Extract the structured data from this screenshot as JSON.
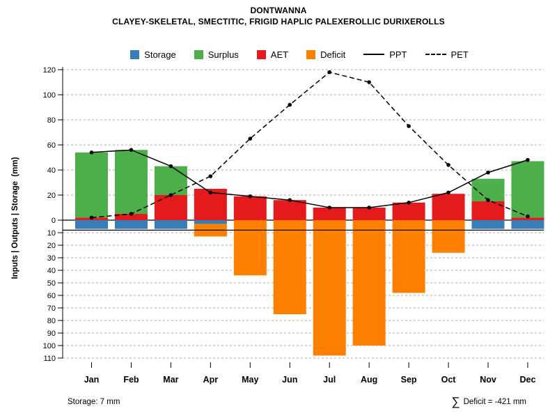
{
  "chart_data": {
    "type": "bar",
    "title": "DONTWANNA",
    "subtitle": "CLAYEY-SKELETAL, SMECTITIC, FRIGID HAPLIC PALEXEROLLIC DURIXEROLLS",
    "ylabel": "Inputs | Outputs | Storage  (mm)",
    "categories": [
      "Jan",
      "Feb",
      "Mar",
      "Apr",
      "May",
      "Jun",
      "Jul",
      "Aug",
      "Sep",
      "Oct",
      "Nov",
      "Dec"
    ],
    "y_axis": {
      "upper_ticks": [
        0,
        20,
        40,
        60,
        80,
        100,
        120
      ],
      "lower_ticks": [
        10,
        20,
        30,
        40,
        50,
        60,
        70,
        80,
        90,
        100,
        110
      ],
      "lower_ticks_are_below_zero": true,
      "ylim": [
        -115,
        122
      ]
    },
    "grid": true,
    "legend_position": "top",
    "series": [
      {
        "name": "Storage",
        "kind": "bar_below_zero",
        "color": "#377EB8",
        "values": [
          7,
          7,
          7,
          3,
          0,
          0,
          0,
          0,
          0,
          0,
          7,
          7
        ]
      },
      {
        "name": "Surplus",
        "kind": "bar_stacked_above_aet",
        "color": "#4DAF4A",
        "values": [
          52,
          51,
          23,
          0,
          0,
          0,
          0,
          0,
          0,
          0,
          18,
          45
        ]
      },
      {
        "name": "AET",
        "kind": "bar_above_zero",
        "color": "#E41A1C",
        "values": [
          2,
          5,
          20,
          25,
          19,
          16,
          10,
          10,
          14,
          21,
          15,
          2
        ]
      },
      {
        "name": "Deficit",
        "kind": "bar_below_zero_stacked_under_storage",
        "color": "#FF7F00",
        "values": [
          0,
          0,
          0,
          10,
          44,
          75,
          108,
          100,
          58,
          26,
          0,
          0
        ]
      },
      {
        "name": "PPT",
        "kind": "line",
        "style": "solid",
        "color": "#000000",
        "values": [
          54,
          56,
          43,
          22,
          19,
          16,
          10,
          10,
          14,
          22,
          38,
          48
        ]
      },
      {
        "name": "PET",
        "kind": "line",
        "style": "dashed",
        "color": "#000000",
        "values": [
          2,
          5,
          20,
          35,
          65,
          92,
          118,
          110,
          75,
          44,
          16,
          3
        ]
      }
    ],
    "reference_lines": {
      "zero_line": 0,
      "storage_capacity_line": -8
    },
    "annotations": {
      "storage_note": "Storage: 7 mm",
      "deficit_sum_symbol": "∑",
      "deficit_sum_text": "Deficit = -421 mm"
    }
  },
  "legend": {
    "items": [
      {
        "label": "Storage",
        "type": "swatch",
        "color": "#377EB8"
      },
      {
        "label": "Surplus",
        "type": "swatch",
        "color": "#4DAF4A"
      },
      {
        "label": "AET",
        "type": "swatch",
        "color": "#E41A1C"
      },
      {
        "label": "Deficit",
        "type": "swatch",
        "color": "#FF7F00"
      },
      {
        "label": "PPT",
        "type": "line",
        "style": "solid",
        "color": "#000000"
      },
      {
        "label": "PET",
        "type": "line",
        "style": "dashed",
        "color": "#000000"
      }
    ]
  }
}
